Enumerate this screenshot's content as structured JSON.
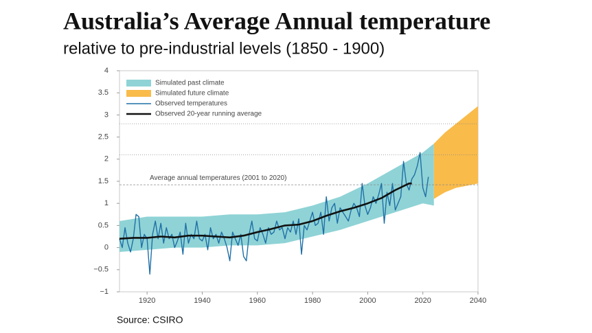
{
  "chart_data": {
    "type": "line",
    "title": "Australia’s Average Annual temperature",
    "subtitle": "relative to pre-industrial levels (1850 - 1900)",
    "source": "Source: CSIRO",
    "xlim": [
      1910,
      2040
    ],
    "xticks": [
      1920,
      1940,
      1960,
      1980,
      2000,
      2020,
      2040
    ],
    "ylim": [
      -1,
      4
    ],
    "yticks": [
      {
        "value": -1,
        "label": "−1"
      },
      {
        "value": -0.5,
        "label": "−0.5"
      },
      0,
      0.5,
      1,
      1.5,
      2,
      2.5,
      3,
      3.5,
      4
    ],
    "reference_lines": [
      {
        "value": 2.8,
        "style": "dotted"
      },
      {
        "value": 2.1,
        "style": "dotted"
      },
      {
        "value": 1.42,
        "style": "dashed",
        "label": "Average annual temperatures (2001 to 2020)"
      }
    ],
    "legend": "upper left",
    "series": [
      {
        "name": "Simulated past climate",
        "kind": "band",
        "color": "#8fd3d6",
        "x": [
          1910,
          1920,
          1930,
          1940,
          1950,
          1960,
          1970,
          1980,
          1990,
          2000,
          2010,
          2020,
          2024
        ],
        "high": [
          0.6,
          0.7,
          0.7,
          0.7,
          0.75,
          0.75,
          0.8,
          0.95,
          1.15,
          1.45,
          1.8,
          2.15,
          2.35
        ],
        "low": [
          -0.1,
          -0.05,
          0,
          0,
          0.05,
          0.05,
          0.1,
          0.25,
          0.4,
          0.6,
          0.8,
          1.0,
          0.95
        ]
      },
      {
        "name": "Simulated future climate",
        "kind": "band",
        "color": "#f9bb4a",
        "x": [
          2024,
          2028,
          2032,
          2036,
          2040
        ],
        "high": [
          2.35,
          2.6,
          2.8,
          3.0,
          3.2
        ],
        "low": [
          1.1,
          1.25,
          1.35,
          1.4,
          1.45
        ]
      },
      {
        "name": "Observed temperatures",
        "kind": "line",
        "color": "#1f6fa6",
        "width": 1.4,
        "x": [
          1910,
          1911,
          1912,
          1913,
          1914,
          1915,
          1916,
          1917,
          1918,
          1919,
          1920,
          1921,
          1922,
          1923,
          1924,
          1925,
          1926,
          1927,
          1928,
          1929,
          1930,
          1931,
          1932,
          1933,
          1934,
          1935,
          1936,
          1937,
          1938,
          1939,
          1940,
          1941,
          1942,
          1943,
          1944,
          1945,
          1946,
          1947,
          1948,
          1949,
          1950,
          1951,
          1952,
          1953,
          1954,
          1955,
          1956,
          1957,
          1958,
          1959,
          1960,
          1961,
          1962,
          1963,
          1964,
          1965,
          1966,
          1967,
          1968,
          1969,
          1970,
          1971,
          1972,
          1973,
          1974,
          1975,
          1976,
          1977,
          1978,
          1979,
          1980,
          1981,
          1982,
          1983,
          1984,
          1985,
          1986,
          1987,
          1988,
          1989,
          1990,
          1991,
          1992,
          1993,
          1994,
          1995,
          1996,
          1997,
          1998,
          1999,
          2000,
          2001,
          2002,
          2003,
          2004,
          2005,
          2006,
          2007,
          2008,
          2009,
          2010,
          2011,
          2012,
          2013,
          2014,
          2015,
          2016,
          2017,
          2018,
          2019,
          2020,
          2021,
          2022
        ],
        "values": [
          0.2,
          0.0,
          0.45,
          0.1,
          -0.1,
          0.2,
          0.75,
          0.7,
          0.0,
          0.3,
          0.2,
          -0.6,
          0.3,
          0.6,
          0.2,
          0.55,
          0.1,
          0.45,
          0.2,
          0.3,
          0.0,
          0.15,
          0.35,
          -0.15,
          0.55,
          0.1,
          0.3,
          0.2,
          0.6,
          0.2,
          0.15,
          0.3,
          -0.05,
          0.45,
          0.2,
          0.3,
          0.1,
          0.35,
          0.2,
          0.0,
          -0.3,
          0.35,
          0.2,
          0.05,
          0.3,
          -0.2,
          -0.3,
          0.3,
          0.6,
          0.2,
          0.15,
          0.45,
          0.3,
          0.1,
          0.45,
          0.3,
          0.35,
          0.6,
          0.4,
          0.45,
          0.2,
          0.45,
          0.35,
          0.6,
          0.3,
          0.65,
          -0.15,
          0.5,
          0.4,
          0.6,
          0.8,
          0.5,
          0.55,
          0.8,
          0.3,
          1.15,
          0.6,
          0.9,
          1.0,
          0.55,
          0.9,
          0.8,
          0.7,
          0.6,
          0.85,
          1.0,
          0.9,
          0.7,
          1.45,
          0.95,
          0.75,
          0.9,
          1.15,
          1.0,
          1.2,
          1.45,
          0.55,
          1.25,
          0.95,
          1.45,
          0.85,
          1.0,
          1.15,
          1.95,
          1.45,
          1.3,
          1.55,
          1.65,
          1.85,
          2.15,
          1.35,
          1.15,
          1.6
        ]
      },
      {
        "name": "Observed 20-year running average",
        "kind": "line",
        "color": "#111111",
        "width": 2.6,
        "x": [
          1910,
          1915,
          1920,
          1925,
          1930,
          1935,
          1940,
          1945,
          1950,
          1955,
          1960,
          1965,
          1970,
          1975,
          1980,
          1985,
          1990,
          1995,
          2000,
          2005,
          2010,
          2015,
          2016
        ],
        "values": [
          0.2,
          0.22,
          0.22,
          0.25,
          0.23,
          0.27,
          0.27,
          0.25,
          0.23,
          0.27,
          0.35,
          0.42,
          0.5,
          0.52,
          0.6,
          0.72,
          0.82,
          0.9,
          1.0,
          1.12,
          1.3,
          1.45,
          1.45
        ]
      }
    ]
  }
}
